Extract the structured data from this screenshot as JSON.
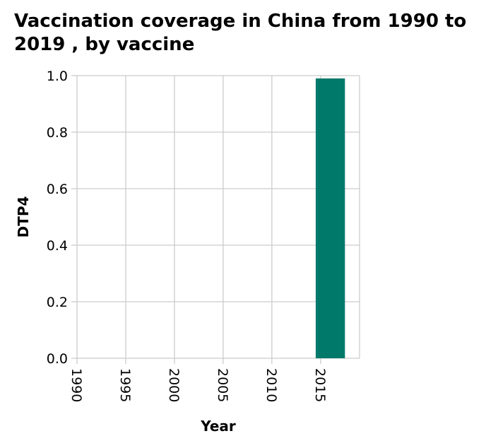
{
  "chart_data": {
    "type": "bar",
    "title": "Vaccination coverage in China from 1990 to 2019 , by vaccine",
    "xlabel": "Year",
    "ylabel": "DTP4",
    "x_ticks": [
      "1990",
      "1995",
      "2000",
      "2005",
      "2010",
      "2015"
    ],
    "y_ticks": [
      "0.0",
      "0.2",
      "0.4",
      "0.6",
      "0.8",
      "1.0"
    ],
    "xlim": [
      1990,
      2019
    ],
    "ylim": [
      0,
      1
    ],
    "grid": true,
    "bars": [
      {
        "x_start": 2014.5,
        "x_end": 2017.5,
        "value": 0.99
      }
    ],
    "bar_color": "#00796b"
  }
}
